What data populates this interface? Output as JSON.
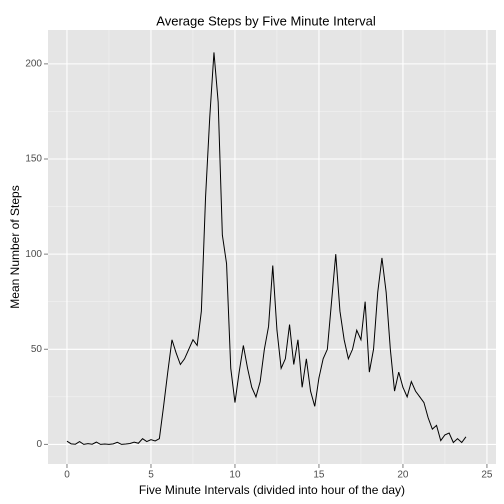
{
  "chart_data": {
    "type": "line",
    "title": "Average Steps by Five Minute Interval",
    "x_label": "Five Minute Intervals (divided into hour of the day)",
    "y_label": "Mean Number of Steps",
    "x": [
      0,
      0.25,
      0.5,
      0.75,
      1,
      1.25,
      1.5,
      1.75,
      2,
      2.25,
      2.5,
      2.75,
      3,
      3.25,
      3.5,
      3.75,
      4,
      4.25,
      4.5,
      4.75,
      5,
      5.25,
      5.5,
      5.75,
      6,
      6.25,
      6.5,
      6.75,
      7,
      7.25,
      7.5,
      7.75,
      8,
      8.25,
      8.5,
      8.75,
      9,
      9.25,
      9.5,
      9.75,
      10,
      10.25,
      10.5,
      10.75,
      11,
      11.25,
      11.5,
      11.75,
      12,
      12.25,
      12.5,
      12.75,
      13,
      13.25,
      13.5,
      13.75,
      14,
      14.25,
      14.5,
      14.75,
      15,
      15.25,
      15.5,
      15.75,
      16,
      16.25,
      16.5,
      16.75,
      17,
      17.25,
      17.5,
      17.75,
      18,
      18.25,
      18.5,
      18.75,
      19,
      19.25,
      19.5,
      19.75,
      20,
      20.25,
      20.5,
      20.75,
      21,
      21.25,
      21.5,
      21.75,
      22,
      22.25,
      22.5,
      22.75,
      23,
      23.25,
      23.5,
      23.75
    ],
    "values": [
      1.7,
      0.3,
      0.1,
      1.5,
      0,
      0.4,
      0.1,
      1.2,
      0,
      0.2,
      0,
      0.3,
      1.1,
      0,
      0.2,
      0.5,
      1.2,
      0.6,
      3,
      1.5,
      2.5,
      1.8,
      3,
      20,
      38,
      55,
      48,
      42,
      45,
      50,
      55,
      52,
      70,
      130,
      172,
      206,
      180,
      110,
      95,
      40,
      22,
      38,
      52,
      40,
      30,
      25,
      33,
      50,
      62,
      94,
      60,
      40,
      45,
      63,
      42,
      55,
      30,
      45,
      28,
      20,
      35,
      45,
      50,
      75,
      100,
      70,
      55,
      45,
      50,
      60,
      55,
      75,
      38,
      50,
      80,
      98,
      80,
      50,
      28,
      38,
      30,
      25,
      33,
      28,
      25,
      22,
      14,
      8,
      10,
      2,
      5,
      6,
      1,
      3,
      1,
      4
    ],
    "color": "#000000",
    "xlim": [
      -1.13,
      25.54
    ],
    "xticks": [
      0,
      5,
      10,
      15,
      20,
      25
    ],
    "x_minor_ticks": [
      2.5,
      7.5,
      12.5,
      17.5,
      22.5
    ],
    "ylim": [
      -10.3,
      217.8
    ],
    "yticks": [
      0,
      50,
      100,
      150,
      200
    ],
    "y_minor_ticks": [
      25,
      75,
      125,
      175
    ],
    "grid": true
  }
}
